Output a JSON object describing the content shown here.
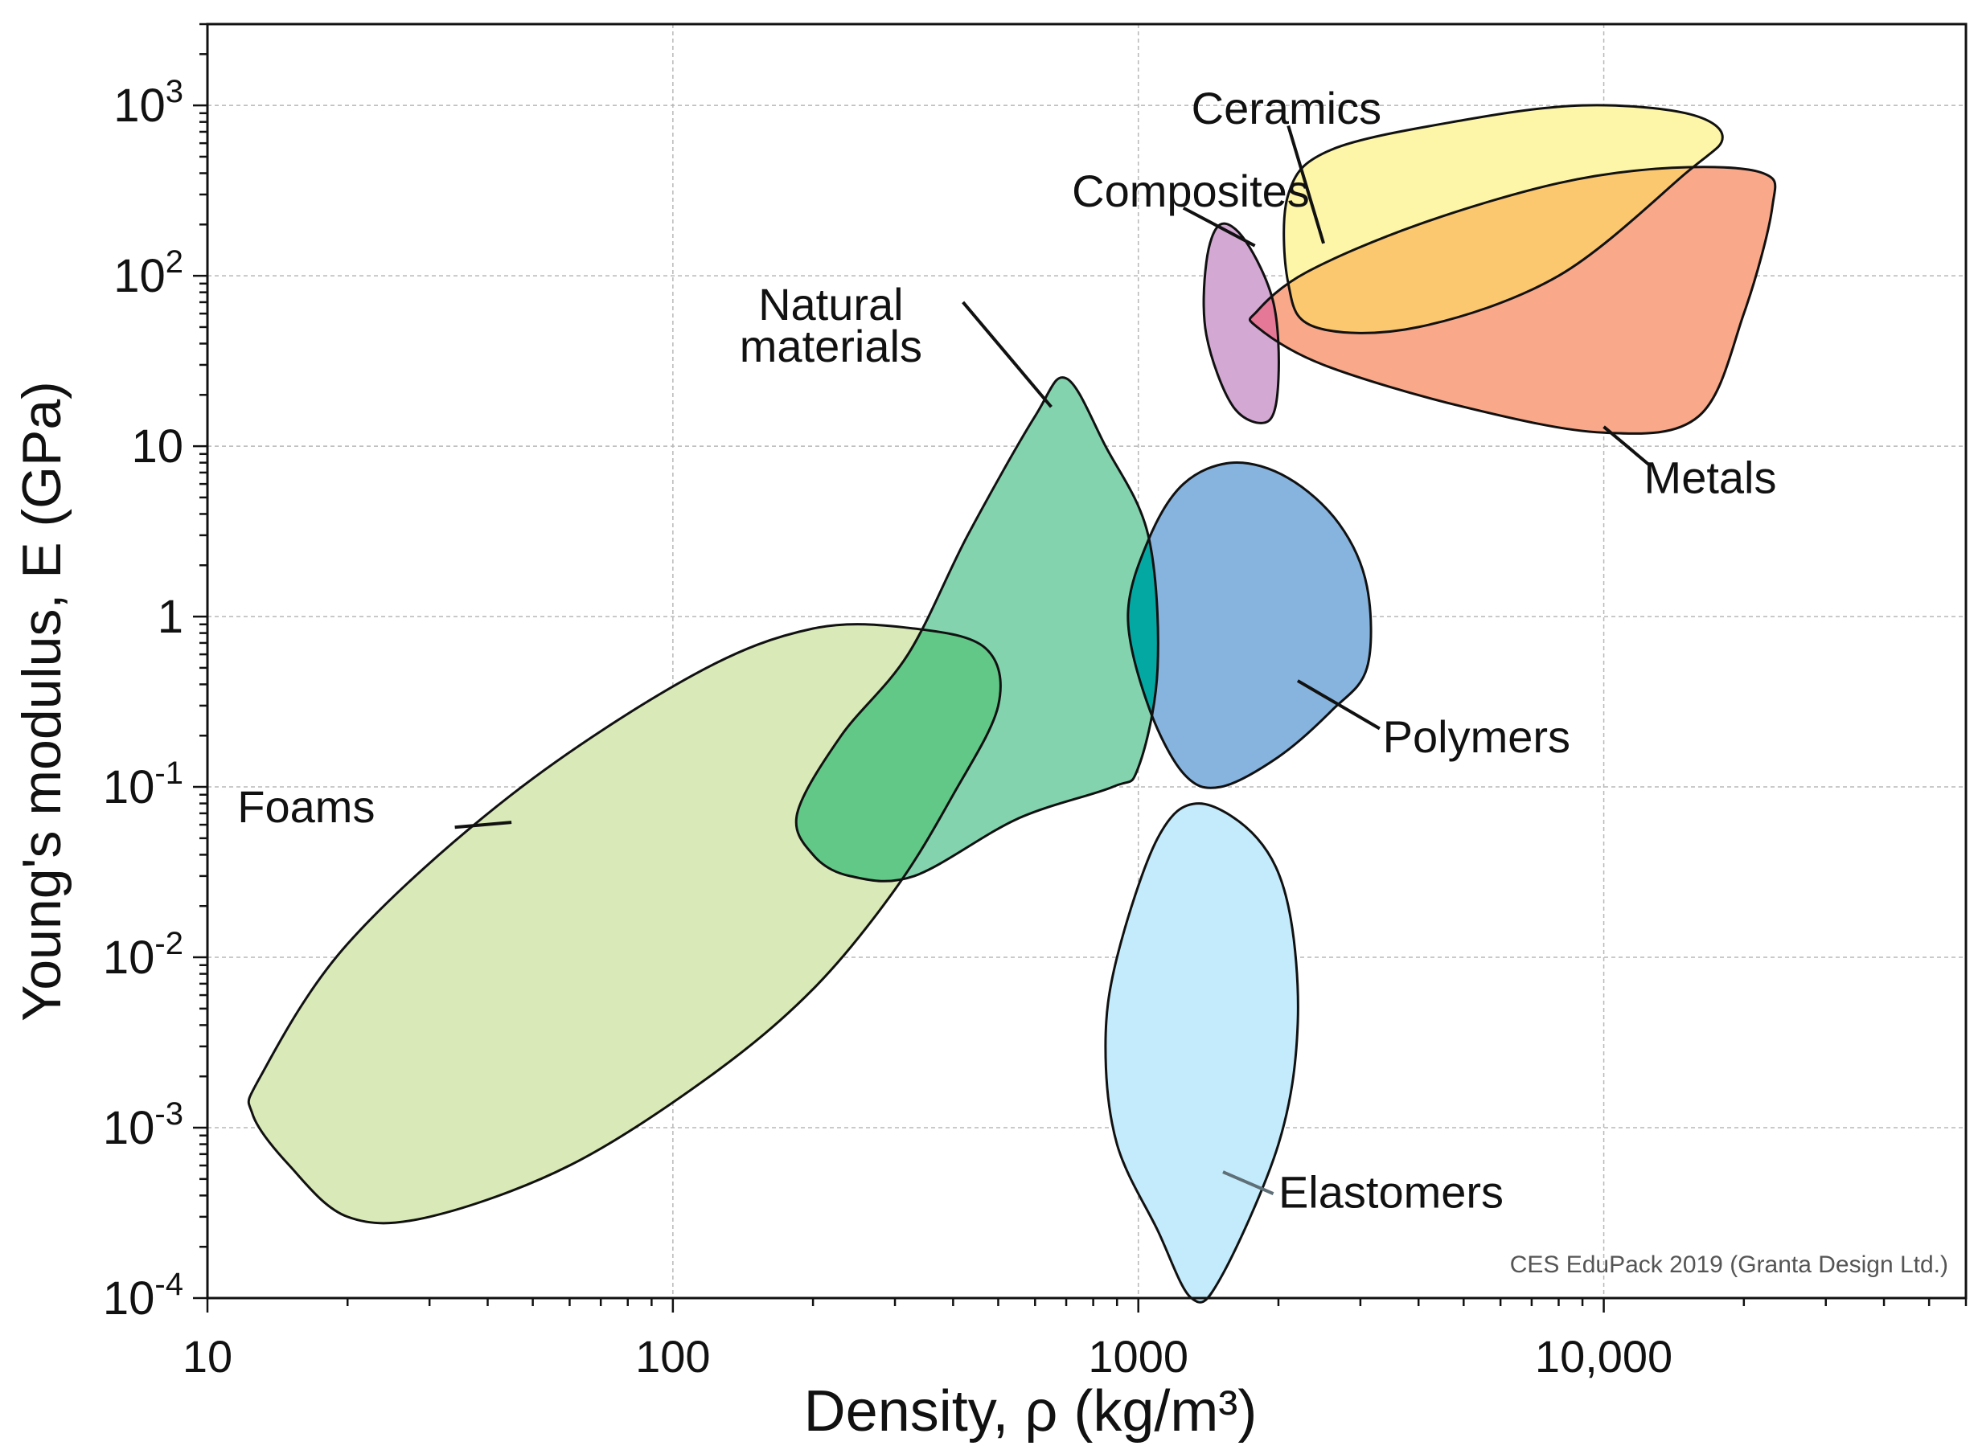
{
  "chart_data": {
    "type": "scatter",
    "title": "",
    "xlabel": "Density, ρ  (kg/m³)",
    "ylabel": "Young's modulus, E (GPa)",
    "x_scale": "log",
    "y_scale": "log",
    "xlim": [
      10,
      60000
    ],
    "ylim": [
      0.0001,
      3000
    ],
    "grid": true,
    "x_ticks": [
      {
        "value": 10,
        "label": "10"
      },
      {
        "value": 100,
        "label": "100"
      },
      {
        "value": 1000,
        "label": "1000"
      },
      {
        "value": 10000,
        "label": "10,000"
      }
    ],
    "y_ticks": [
      {
        "value": 0.0001,
        "base": "10",
        "exp": "-4"
      },
      {
        "value": 0.001,
        "base": "10",
        "exp": "-3"
      },
      {
        "value": 0.01,
        "base": "10",
        "exp": "-2"
      },
      {
        "value": 0.1,
        "base": "10",
        "exp": "-1"
      },
      {
        "value": 1,
        "base": "1",
        "exp": ""
      },
      {
        "value": 10,
        "base": "10",
        "exp": ""
      },
      {
        "value": 100,
        "base": "10",
        "exp": "2"
      },
      {
        "value": 1000,
        "base": "10",
        "exp": "3"
      }
    ],
    "regions": [
      {
        "name": "Foams",
        "color": "#d9e9b7",
        "outline": [
          [
            12.5,
            0.0012
          ],
          [
            15,
            0.0006
          ],
          [
            20,
            0.0003
          ],
          [
            30,
            0.0003
          ],
          [
            60,
            0.0006
          ],
          [
            120,
            0.002
          ],
          [
            200,
            0.0065
          ],
          [
            300,
            0.025
          ],
          [
            400,
            0.09
          ],
          [
            500,
            0.3
          ],
          [
            470,
            0.65
          ],
          [
            330,
            0.85
          ],
          [
            200,
            0.85
          ],
          [
            110,
            0.45
          ],
          [
            45,
            0.09
          ],
          [
            20,
            0.012
          ],
          [
            13,
            0.002
          ]
        ]
      },
      {
        "name": "Natural materials",
        "color": "#83d3af",
        "outline": [
          [
            200,
            0.04
          ],
          [
            240,
            0.03
          ],
          [
            330,
            0.03
          ],
          [
            550,
            0.065
          ],
          [
            880,
            0.1
          ],
          [
            1000,
            0.13
          ],
          [
            1100,
            0.5
          ],
          [
            1050,
            3
          ],
          [
            850,
            10
          ],
          [
            700,
            25
          ],
          [
            600,
            15
          ],
          [
            430,
            3
          ],
          [
            320,
            0.6
          ],
          [
            230,
            0.2
          ],
          [
            185,
            0.07
          ]
        ]
      },
      {
        "name": "Polymers",
        "color": "#87b4df",
        "outline": [
          [
            1500,
            0.1
          ],
          [
            2000,
            0.15
          ],
          [
            2600,
            0.28
          ],
          [
            3100,
            0.5
          ],
          [
            3100,
            1.5
          ],
          [
            2700,
            3.5
          ],
          [
            2100,
            6.5
          ],
          [
            1600,
            8
          ],
          [
            1250,
            6
          ],
          [
            1050,
            2.8
          ],
          [
            950,
            1
          ],
          [
            1050,
            0.3
          ],
          [
            1250,
            0.12
          ]
        ]
      },
      {
        "name": "Elastomers",
        "color": "#c4ebfb",
        "outline": [
          [
            1100,
            0.00025
          ],
          [
            1300,
            0.0001
          ],
          [
            1500,
            0.00013
          ],
          [
            2000,
            0.0008
          ],
          [
            2200,
            0.004
          ],
          [
            2100,
            0.02
          ],
          [
            1800,
            0.05
          ],
          [
            1350,
            0.08
          ],
          [
            1100,
            0.05
          ],
          [
            900,
            0.01
          ],
          [
            850,
            0.003
          ],
          [
            900,
            0.0008
          ]
        ]
      },
      {
        "name": "Composites",
        "color": "#d3a9d4",
        "outline": [
          [
            1600,
            17
          ],
          [
            1900,
            14
          ],
          [
            2000,
            25
          ],
          [
            1950,
            70
          ],
          [
            1700,
            160
          ],
          [
            1500,
            200
          ],
          [
            1400,
            120
          ],
          [
            1400,
            45
          ]
        ]
      },
      {
        "name": "Metals",
        "color": "#f9a889",
        "outline": [
          [
            1800,
            50
          ],
          [
            2500,
            30
          ],
          [
            5000,
            17
          ],
          [
            10000,
            12
          ],
          [
            16000,
            15
          ],
          [
            20000,
            60
          ],
          [
            23000,
            250
          ],
          [
            22000,
            400
          ],
          [
            14000,
            430
          ],
          [
            8000,
            350
          ],
          [
            4000,
            200
          ],
          [
            2300,
            105
          ],
          [
            1800,
            62
          ]
        ]
      },
      {
        "name": "Ceramics",
        "color": "#fdf6a8",
        "outline": [
          [
            2100,
            90
          ],
          [
            2400,
            50
          ],
          [
            4000,
            50
          ],
          [
            8000,
            100
          ],
          [
            15000,
            400
          ],
          [
            18000,
            650
          ],
          [
            15000,
            900
          ],
          [
            9000,
            1000
          ],
          [
            5000,
            820
          ],
          [
            2600,
            550
          ],
          [
            2100,
            300
          ]
        ]
      }
    ],
    "annotations": [
      {
        "text": "Ceramics",
        "anchor": [
          1300,
          780
        ],
        "line": [
          [
            2100,
            760
          ],
          [
            2500,
            155
          ]
        ]
      },
      {
        "text": "Composites",
        "anchor": [
          720,
          255
        ],
        "line": [
          [
            1250,
            250
          ],
          [
            1780,
            150
          ]
        ]
      },
      {
        "text": "Natural\nmaterials",
        "anchor": [
          210,
          55
        ],
        "line": [
          [
            420,
            70
          ],
          [
            650,
            17
          ]
        ]
      },
      {
        "text": "Metals",
        "anchor": [
          12200,
          5.3
        ],
        "line": [
          [
            12500,
            7.8
          ],
          [
            10000,
            13
          ]
        ]
      },
      {
        "text": "Polymers",
        "anchor": [
          3350,
          0.16
        ],
        "line": [
          [
            3300,
            0.22
          ],
          [
            2200,
            0.42
          ]
        ]
      },
      {
        "text": "Foams",
        "anchor": [
          11.6,
          0.062
        ],
        "line": [
          [
            34,
            0.058
          ],
          [
            45,
            0.062
          ]
        ]
      },
      {
        "text": "Elastomers",
        "anchor": [
          2000,
          0.00034
        ],
        "line": [
          [
            1950,
            0.00041
          ],
          [
            1520,
            0.00055
          ]
        ]
      }
    ]
  },
  "credit": "CES EduPack 2019 (Granta Design Ltd.)",
  "colors": {
    "outline": "#111111",
    "grid": "#b8b8b8",
    "overlap_foams_natural": "#62c887",
    "overlap_natural_polymers": "#04a8a2",
    "overlap_ceramics_metals": "#fbc870",
    "overlap_composites_metals": "#e47896"
  }
}
